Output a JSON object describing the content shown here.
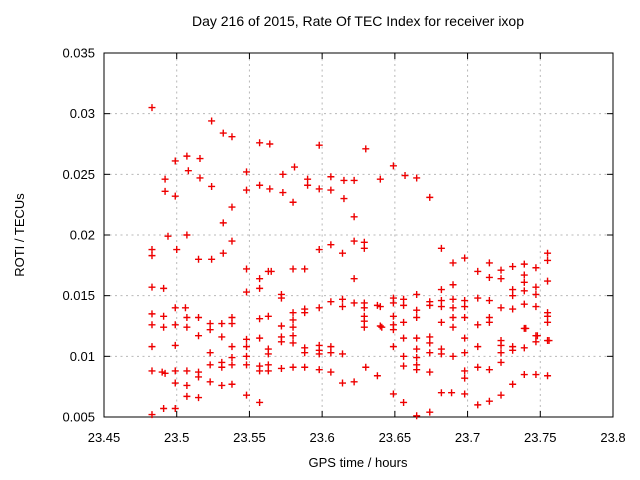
{
  "chart_data": {
    "type": "scatter",
    "title": "Day 216 of 2015, Rate Of TEC Index for receiver ixop",
    "xlabel": "GPS time / hours",
    "ylabel": "ROTI / TECUs",
    "xlim": [
      23.45,
      23.8
    ],
    "ylim": [
      0.005,
      0.035
    ],
    "grid": true,
    "legend_position": "none",
    "xticks": {
      "values": [
        23.45,
        23.5,
        23.55,
        23.6,
        23.65,
        23.7,
        23.75,
        23.8
      ],
      "labels": [
        "23.45",
        "23.5",
        "23.55",
        "23.6",
        "23.65",
        "23.7",
        "23.75",
        "23.8"
      ]
    },
    "yticks": {
      "values": [
        0.005,
        0.01,
        0.015,
        0.02,
        0.025,
        0.03,
        0.035
      ],
      "labels": [
        "0.005",
        "0.01",
        "0.015",
        "0.02",
        "0.025",
        "0.03",
        "0.035"
      ]
    },
    "colors": {
      "background": "#ffffff",
      "border": "#000000",
      "grid": "#b8b8b8",
      "text": "#000000",
      "marker": "#ee0000"
    },
    "marker": {
      "shape": "plus",
      "size": 7,
      "stroke_width": 1.4
    },
    "series": [
      {
        "name": "ROTI",
        "points": [
          [
            23.483,
            0.0305
          ],
          [
            23.524,
            0.0294
          ],
          [
            23.532,
            0.0284
          ],
          [
            23.499,
            0.0261
          ],
          [
            23.507,
            0.0265
          ],
          [
            23.516,
            0.0263
          ],
          [
            23.508,
            0.0253
          ],
          [
            23.492,
            0.0246
          ],
          [
            23.516,
            0.0247
          ],
          [
            23.524,
            0.024
          ],
          [
            23.492,
            0.0236
          ],
          [
            23.499,
            0.0232
          ],
          [
            23.532,
            0.021
          ],
          [
            23.494,
            0.0199
          ],
          [
            23.507,
            0.02
          ],
          [
            23.538,
            0.0281
          ],
          [
            23.557,
            0.0276
          ],
          [
            23.564,
            0.0275
          ],
          [
            23.598,
            0.0274
          ],
          [
            23.581,
            0.0256
          ],
          [
            23.548,
            0.0252
          ],
          [
            23.573,
            0.025
          ],
          [
            23.557,
            0.0241
          ],
          [
            23.564,
            0.0238
          ],
          [
            23.548,
            0.0237
          ],
          [
            23.573,
            0.0235
          ],
          [
            23.59,
            0.0246
          ],
          [
            23.59,
            0.0241
          ],
          [
            23.598,
            0.0238
          ],
          [
            23.606,
            0.0248
          ],
          [
            23.615,
            0.0245
          ],
          [
            23.622,
            0.0245
          ],
          [
            23.606,
            0.0237
          ],
          [
            23.615,
            0.023
          ],
          [
            23.58,
            0.0227
          ],
          [
            23.538,
            0.0223
          ],
          [
            23.622,
            0.0215
          ],
          [
            23.63,
            0.0271
          ],
          [
            23.649,
            0.0257
          ],
          [
            23.64,
            0.0246
          ],
          [
            23.657,
            0.0249
          ],
          [
            23.665,
            0.0247
          ],
          [
            23.674,
            0.0231
          ],
          [
            23.483,
            0.0188
          ],
          [
            23.483,
            0.0183
          ],
          [
            23.5,
            0.0188
          ],
          [
            23.515,
            0.018
          ],
          [
            23.524,
            0.018
          ],
          [
            23.532,
            0.0185
          ],
          [
            23.483,
            0.0157
          ],
          [
            23.491,
            0.0156
          ],
          [
            23.499,
            0.014
          ],
          [
            23.506,
            0.014
          ],
          [
            23.483,
            0.0135
          ],
          [
            23.491,
            0.0133
          ],
          [
            23.483,
            0.0126
          ],
          [
            23.491,
            0.0124
          ],
          [
            23.499,
            0.0126
          ],
          [
            23.507,
            0.0132
          ],
          [
            23.507,
            0.0124
          ],
          [
            23.515,
            0.0132
          ],
          [
            23.515,
            0.0117
          ],
          [
            23.523,
            0.0127
          ],
          [
            23.523,
            0.0122
          ],
          [
            23.531,
            0.0127
          ],
          [
            23.531,
            0.0116
          ],
          [
            23.483,
            0.0108
          ],
          [
            23.499,
            0.0109
          ],
          [
            23.523,
            0.0103
          ],
          [
            23.483,
            0.0088
          ],
          [
            23.49,
            0.0087
          ],
          [
            23.492,
            0.0086
          ],
          [
            23.499,
            0.0088
          ],
          [
            23.507,
            0.0088
          ],
          [
            23.515,
            0.0087
          ],
          [
            23.515,
            0.0083
          ],
          [
            23.523,
            0.0093
          ],
          [
            23.531,
            0.0095
          ],
          [
            23.531,
            0.0091
          ],
          [
            23.523,
            0.0079
          ],
          [
            23.531,
            0.0076
          ],
          [
            23.507,
            0.0076
          ],
          [
            23.499,
            0.0078
          ],
          [
            23.507,
            0.0067
          ],
          [
            23.515,
            0.0066
          ],
          [
            23.491,
            0.0057
          ],
          [
            23.499,
            0.0057
          ],
          [
            23.483,
            0.0052
          ],
          [
            23.538,
            0.0195
          ],
          [
            23.606,
            0.0192
          ],
          [
            23.598,
            0.0188
          ],
          [
            23.614,
            0.0185
          ],
          [
            23.622,
            0.0195
          ],
          [
            23.548,
            0.0172
          ],
          [
            23.563,
            0.017
          ],
          [
            23.565,
            0.017
          ],
          [
            23.557,
            0.0164
          ],
          [
            23.557,
            0.0156
          ],
          [
            23.548,
            0.0153
          ],
          [
            23.58,
            0.0172
          ],
          [
            23.588,
            0.0172
          ],
          [
            23.572,
            0.0151
          ],
          [
            23.572,
            0.0148
          ],
          [
            23.622,
            0.0164
          ],
          [
            23.606,
            0.0145
          ],
          [
            23.614,
            0.0147
          ],
          [
            23.614,
            0.0141
          ],
          [
            23.622,
            0.0144
          ],
          [
            23.588,
            0.0139
          ],
          [
            23.588,
            0.0136
          ],
          [
            23.598,
            0.014
          ],
          [
            23.58,
            0.0136
          ],
          [
            23.58,
            0.013
          ],
          [
            23.557,
            0.0131
          ],
          [
            23.563,
            0.0133
          ],
          [
            23.538,
            0.0132
          ],
          [
            23.538,
            0.0127
          ],
          [
            23.572,
            0.0125
          ],
          [
            23.572,
            0.0116
          ],
          [
            23.572,
            0.0112
          ],
          [
            23.58,
            0.0124
          ],
          [
            23.58,
            0.0117
          ],
          [
            23.58,
            0.0111
          ],
          [
            23.557,
            0.0115
          ],
          [
            23.548,
            0.0114
          ],
          [
            23.548,
            0.0108
          ],
          [
            23.538,
            0.0108
          ],
          [
            23.563,
            0.0106
          ],
          [
            23.563,
            0.0102
          ],
          [
            23.588,
            0.0107
          ],
          [
            23.588,
            0.0103
          ],
          [
            23.598,
            0.0109
          ],
          [
            23.598,
            0.0105
          ],
          [
            23.598,
            0.0102
          ],
          [
            23.606,
            0.0108
          ],
          [
            23.606,
            0.0103
          ],
          [
            23.614,
            0.0102
          ],
          [
            23.548,
            0.01
          ],
          [
            23.538,
            0.0099
          ],
          [
            23.538,
            0.0093
          ],
          [
            23.548,
            0.0093
          ],
          [
            23.557,
            0.0092
          ],
          [
            23.557,
            0.0088
          ],
          [
            23.563,
            0.0093
          ],
          [
            23.563,
            0.0088
          ],
          [
            23.572,
            0.009
          ],
          [
            23.58,
            0.0091
          ],
          [
            23.588,
            0.0091
          ],
          [
            23.598,
            0.0089
          ],
          [
            23.606,
            0.0087
          ],
          [
            23.614,
            0.0078
          ],
          [
            23.622,
            0.0079
          ],
          [
            23.538,
            0.0077
          ],
          [
            23.548,
            0.0068
          ],
          [
            23.557,
            0.0062
          ],
          [
            23.629,
            0.0194
          ],
          [
            23.629,
            0.0189
          ],
          [
            23.682,
            0.0189
          ],
          [
            23.69,
            0.0177
          ],
          [
            23.698,
            0.0181
          ],
          [
            23.707,
            0.017
          ],
          [
            23.715,
            0.0177
          ],
          [
            23.715,
            0.0165
          ],
          [
            23.69,
            0.0159
          ],
          [
            23.682,
            0.0155
          ],
          [
            23.665,
            0.0151
          ],
          [
            23.649,
            0.0148
          ],
          [
            23.649,
            0.0144
          ],
          [
            23.656,
            0.0147
          ],
          [
            23.656,
            0.0142
          ],
          [
            23.629,
            0.0144
          ],
          [
            23.629,
            0.014
          ],
          [
            23.638,
            0.0142
          ],
          [
            23.64,
            0.0141
          ],
          [
            23.674,
            0.0145
          ],
          [
            23.674,
            0.0142
          ],
          [
            23.682,
            0.0146
          ],
          [
            23.682,
            0.0141
          ],
          [
            23.69,
            0.0147
          ],
          [
            23.69,
            0.014
          ],
          [
            23.698,
            0.0146
          ],
          [
            23.698,
            0.0141
          ],
          [
            23.707,
            0.0148
          ],
          [
            23.715,
            0.0146
          ],
          [
            23.665,
            0.0138
          ],
          [
            23.665,
            0.0132
          ],
          [
            23.629,
            0.0133
          ],
          [
            23.629,
            0.0129
          ],
          [
            23.629,
            0.0124
          ],
          [
            23.64,
            0.0125
          ],
          [
            23.641,
            0.0124
          ],
          [
            23.649,
            0.0133
          ],
          [
            23.649,
            0.0126
          ],
          [
            23.649,
            0.0122
          ],
          [
            23.656,
            0.0128
          ],
          [
            23.656,
            0.0115
          ],
          [
            23.665,
            0.0115
          ],
          [
            23.674,
            0.0116
          ],
          [
            23.674,
            0.0111
          ],
          [
            23.682,
            0.0128
          ],
          [
            23.69,
            0.0132
          ],
          [
            23.69,
            0.0124
          ],
          [
            23.698,
            0.0132
          ],
          [
            23.698,
            0.0115
          ],
          [
            23.707,
            0.0126
          ],
          [
            23.715,
            0.0132
          ],
          [
            23.715,
            0.0128
          ],
          [
            23.649,
            0.0108
          ],
          [
            23.656,
            0.01
          ],
          [
            23.665,
            0.0106
          ],
          [
            23.665,
            0.0099
          ],
          [
            23.674,
            0.0103
          ],
          [
            23.682,
            0.0106
          ],
          [
            23.682,
            0.0102
          ],
          [
            23.69,
            0.01
          ],
          [
            23.698,
            0.0103
          ],
          [
            23.707,
            0.0108
          ],
          [
            23.656,
            0.0092
          ],
          [
            23.665,
            0.0093
          ],
          [
            23.665,
            0.0089
          ],
          [
            23.674,
            0.0087
          ],
          [
            23.63,
            0.0091
          ],
          [
            23.638,
            0.0084
          ],
          [
            23.698,
            0.0088
          ],
          [
            23.698,
            0.0082
          ],
          [
            23.707,
            0.0091
          ],
          [
            23.715,
            0.0089
          ],
          [
            23.649,
            0.0069
          ],
          [
            23.656,
            0.0062
          ],
          [
            23.682,
            0.007
          ],
          [
            23.689,
            0.007
          ],
          [
            23.698,
            0.0069
          ],
          [
            23.707,
            0.006
          ],
          [
            23.715,
            0.0063
          ],
          [
            23.665,
            0.0051
          ],
          [
            23.674,
            0.0054
          ],
          [
            23.755,
            0.0185
          ],
          [
            23.755,
            0.0179
          ],
          [
            23.723,
            0.0171
          ],
          [
            23.731,
            0.0174
          ],
          [
            23.739,
            0.0176
          ],
          [
            23.747,
            0.0173
          ],
          [
            23.723,
            0.0164
          ],
          [
            23.739,
            0.0167
          ],
          [
            23.739,
            0.0161
          ],
          [
            23.755,
            0.0162
          ],
          [
            23.731,
            0.0155
          ],
          [
            23.731,
            0.015
          ],
          [
            23.739,
            0.0154
          ],
          [
            23.747,
            0.0157
          ],
          [
            23.747,
            0.0151
          ],
          [
            23.739,
            0.0143
          ],
          [
            23.747,
            0.0141
          ],
          [
            23.723,
            0.014
          ],
          [
            23.731,
            0.0139
          ],
          [
            23.755,
            0.0136
          ],
          [
            23.755,
            0.0133
          ],
          [
            23.755,
            0.0128
          ],
          [
            23.739,
            0.0123
          ],
          [
            23.74,
            0.0123
          ],
          [
            23.747,
            0.0117
          ],
          [
            23.748,
            0.0117
          ],
          [
            23.747,
            0.0112
          ],
          [
            23.755,
            0.0113
          ],
          [
            23.756,
            0.0113
          ],
          [
            23.723,
            0.0113
          ],
          [
            23.723,
            0.0109
          ],
          [
            23.731,
            0.0108
          ],
          [
            23.731,
            0.0105
          ],
          [
            23.739,
            0.0107
          ],
          [
            23.723,
            0.0103
          ],
          [
            23.723,
            0.0095
          ],
          [
            23.739,
            0.0085
          ],
          [
            23.747,
            0.0085
          ],
          [
            23.755,
            0.0084
          ],
          [
            23.731,
            0.0077
          ],
          [
            23.723,
            0.0068
          ]
        ]
      }
    ]
  }
}
